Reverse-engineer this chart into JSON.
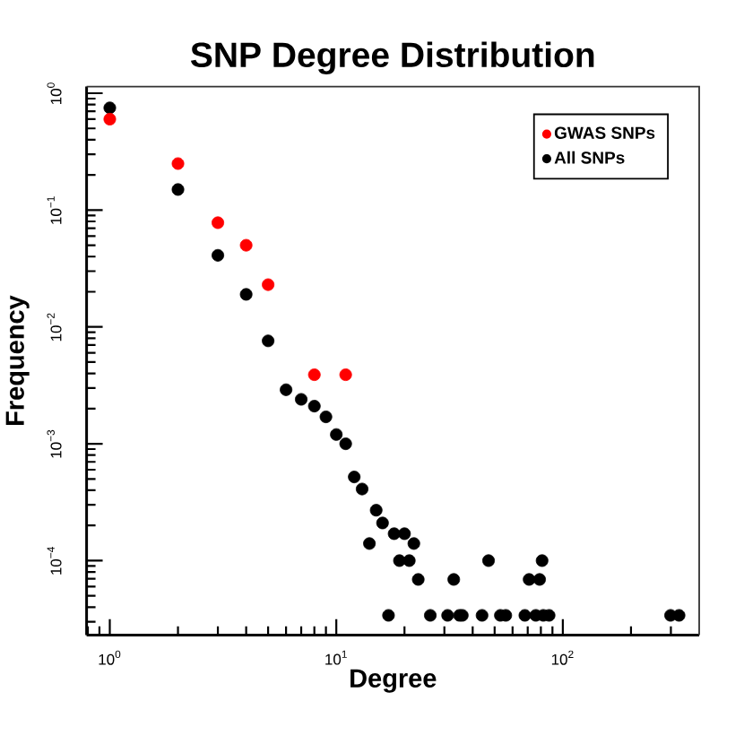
{
  "chart_data": {
    "type": "scatter",
    "title": "SNP Degree Distribution",
    "xlabel": "Degree",
    "ylabel": "Frequency",
    "log": "xy",
    "xlim": [
      0.79,
      400
    ],
    "ylim": [
      2.3e-05,
      1.14
    ],
    "xticks": [
      {
        "value": 1,
        "label": "10$^{0}$"
      },
      {
        "value": 10,
        "label": "10$^{1}$"
      },
      {
        "value": 100,
        "label": "10$^{2}$"
      }
    ],
    "yticks": [
      {
        "value": 0.0001,
        "label": "10$^{−4}$"
      },
      {
        "value": 0.001,
        "label": "10$^{−3}$"
      },
      {
        "value": 0.01,
        "label": "10$^{−2}$"
      },
      {
        "value": 0.1,
        "label": "10$^{−1}$"
      },
      {
        "value": 1,
        "label": "10$^{0}$"
      }
    ],
    "legend": "top right",
    "marker": "circle",
    "series": [
      {
        "name": "GWAS SNPs",
        "color": "#ff0000",
        "x": [
          1,
          2,
          3,
          4,
          5,
          8,
          11
        ],
        "values": [
          0.6,
          0.25,
          0.078,
          0.05,
          0.023,
          0.0039,
          0.0039
        ]
      },
      {
        "name": "All SNPs",
        "color": "#000000",
        "x": [
          1,
          2,
          3,
          4,
          5,
          6,
          7,
          8,
          9,
          10,
          11,
          12,
          13,
          14,
          15,
          16,
          17,
          18,
          19,
          20,
          21,
          22,
          23,
          26,
          31,
          33,
          35,
          36,
          44,
          47,
          53,
          56,
          68,
          71,
          76,
          79,
          81,
          82,
          87,
          299,
          326
        ],
        "values": [
          0.75,
          0.15,
          0.041,
          0.019,
          0.0076,
          0.0029,
          0.0024,
          0.0021,
          0.0017,
          0.0012,
          0.001,
          0.00052,
          0.00041,
          0.00014,
          0.00027,
          0.00021,
          3.4e-05,
          0.00017,
          0.0001,
          0.00017,
          0.0001,
          0.00014,
          6.9e-05,
          3.4e-05,
          3.4e-05,
          6.9e-05,
          3.4e-05,
          3.4e-05,
          3.4e-05,
          0.0001,
          3.4e-05,
          3.4e-05,
          3.4e-05,
          6.9e-05,
          3.4e-05,
          6.9e-05,
          0.0001,
          3.4e-05,
          3.4e-05,
          3.4e-05,
          3.4e-05
        ]
      }
    ]
  }
}
